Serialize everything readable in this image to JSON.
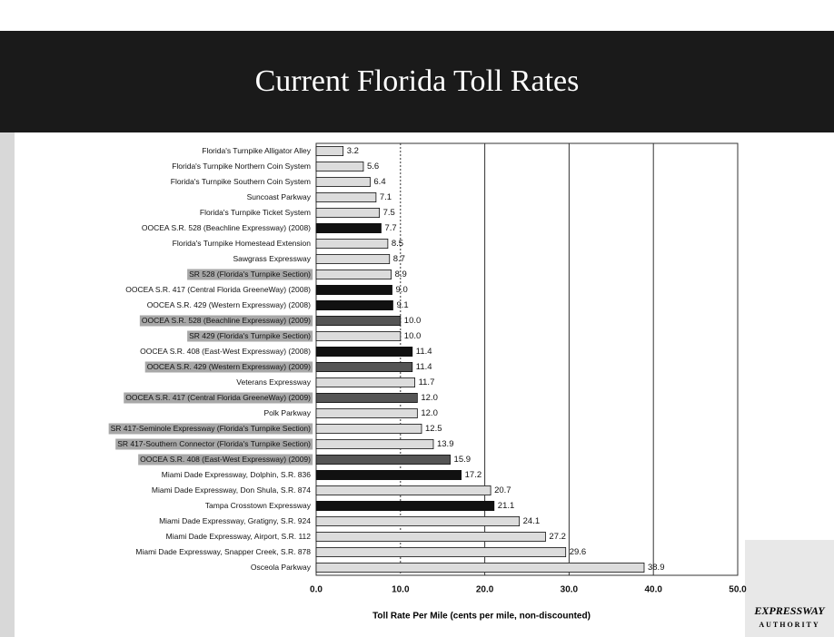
{
  "chart_data": {
    "type": "hbar",
    "title": "Current Florida Toll Rates",
    "x_label": "Toll Rate Per Mile (cents per mile, non-discounted)",
    "logo": [
      "EXPRESSWAY",
      "AUTHORITY"
    ],
    "categories": [
      "Florida's Turnpike Alligator Alley",
      "Florida's Turnpike Northern Coin System",
      "Florida's Turnpike Southern Coin System",
      "Suncoast Parkway",
      "Florida's Turnpike Ticket System",
      "OOCEA S.R. 528 (Beachline Expressway)  (2008)",
      "Florida's Turnpike Homestead Extension",
      "Sawgrass Expressway",
      "SR 528 (Florida's Turnpike Section)",
      "OOCEA S.R. 417 (Central Florida GreeneWay)  (2008)",
      "OOCEA S.R. 429 (Western Expressway)  (2008)",
      "OOCEA S.R. 528 (Beachline Expressway)  (2009)",
      "SR 429 (Florida's Turnpike Section)",
      "OOCEA S.R. 408 (East-West Expressway)  (2008)",
      "OOCEA S.R. 429 (Western Expressway)  (2009)",
      "Veterans Expressway",
      "OOCEA S.R. 417 (Central Florida GreeneWay)  (2009)",
      "Polk Parkway",
      "SR 417-Seminole Expressway (Florida's Turnpike Section)",
      "SR 417-Southern Connector (Florida's Turnpike Section)",
      "OOCEA S.R. 408 (East-West Expressway) (2009)",
      "Miami Dade Expressway, Dolphin, S.R. 836",
      "Miami Dade Expressway, Don Shula, S.R. 874",
      "Tampa Crosstown Expressway",
      "Miami Dade Expressway, Gratigny, S.R. 924",
      "Miami Dade Expressway, Airport, S.R. 112",
      "Miami Dade Expressway, Snapper Creek, S.R. 878",
      "Osceola Parkway"
    ],
    "values": [
      3.2,
      5.6,
      6.4,
      7.1,
      7.5,
      7.7,
      8.5,
      8.7,
      8.9,
      9.0,
      9.1,
      10.0,
      10.0,
      11.4,
      11.4,
      11.7,
      12.0,
      12.0,
      12.5,
      13.9,
      15.9,
      17.2,
      20.7,
      21.1,
      24.1,
      27.2,
      29.6,
      38.9
    ],
    "value_labels": [
      "3.2",
      "5.6",
      "6.4",
      "7.1",
      "7.5",
      "7.7",
      "8.5",
      "8.7",
      "8.9",
      "9.0",
      "9.1",
      "10.0",
      "10.0",
      "11.4",
      "11.4",
      "11.7",
      "12.0",
      "12.0",
      "12.5",
      "13.9",
      "15.9",
      "17.2",
      "20.7",
      "21.1",
      "24.1",
      "27.2",
      "29.6",
      "38.9"
    ],
    "colors": [
      "#dcdcdc",
      "#dcdcdc",
      "#dcdcdc",
      "#dcdcdc",
      "#dcdcdc",
      "#111111",
      "#dcdcdc",
      "#dcdcdc",
      "#dcdcdc",
      "#111111",
      "#111111",
      "#555555",
      "#dcdcdc",
      "#111111",
      "#555555",
      "#dcdcdc",
      "#555555",
      "#dcdcdc",
      "#dcdcdc",
      "#dcdcdc",
      "#555555",
      "#111111",
      "#dcdcdc",
      "#111111",
      "#dcdcdc",
      "#dcdcdc",
      "#dcdcdc",
      "#dcdcdc"
    ],
    "highlighted_labels": [
      false,
      false,
      false,
      false,
      false,
      false,
      false,
      false,
      true,
      false,
      false,
      true,
      true,
      false,
      true,
      false,
      true,
      false,
      true,
      true,
      true,
      false,
      false,
      false,
      false,
      false,
      false,
      false
    ],
    "xlim": [
      0,
      50
    ],
    "xticks": [
      {
        "value": 0,
        "label": "0.0"
      },
      {
        "value": 10,
        "label": "10.0"
      },
      {
        "value": 20,
        "label": "20.0"
      },
      {
        "value": 30,
        "label": "30.0"
      },
      {
        "value": 40,
        "label": "40.0"
      },
      {
        "value": 50,
        "label": "50.0"
      }
    ],
    "grid": true
  }
}
